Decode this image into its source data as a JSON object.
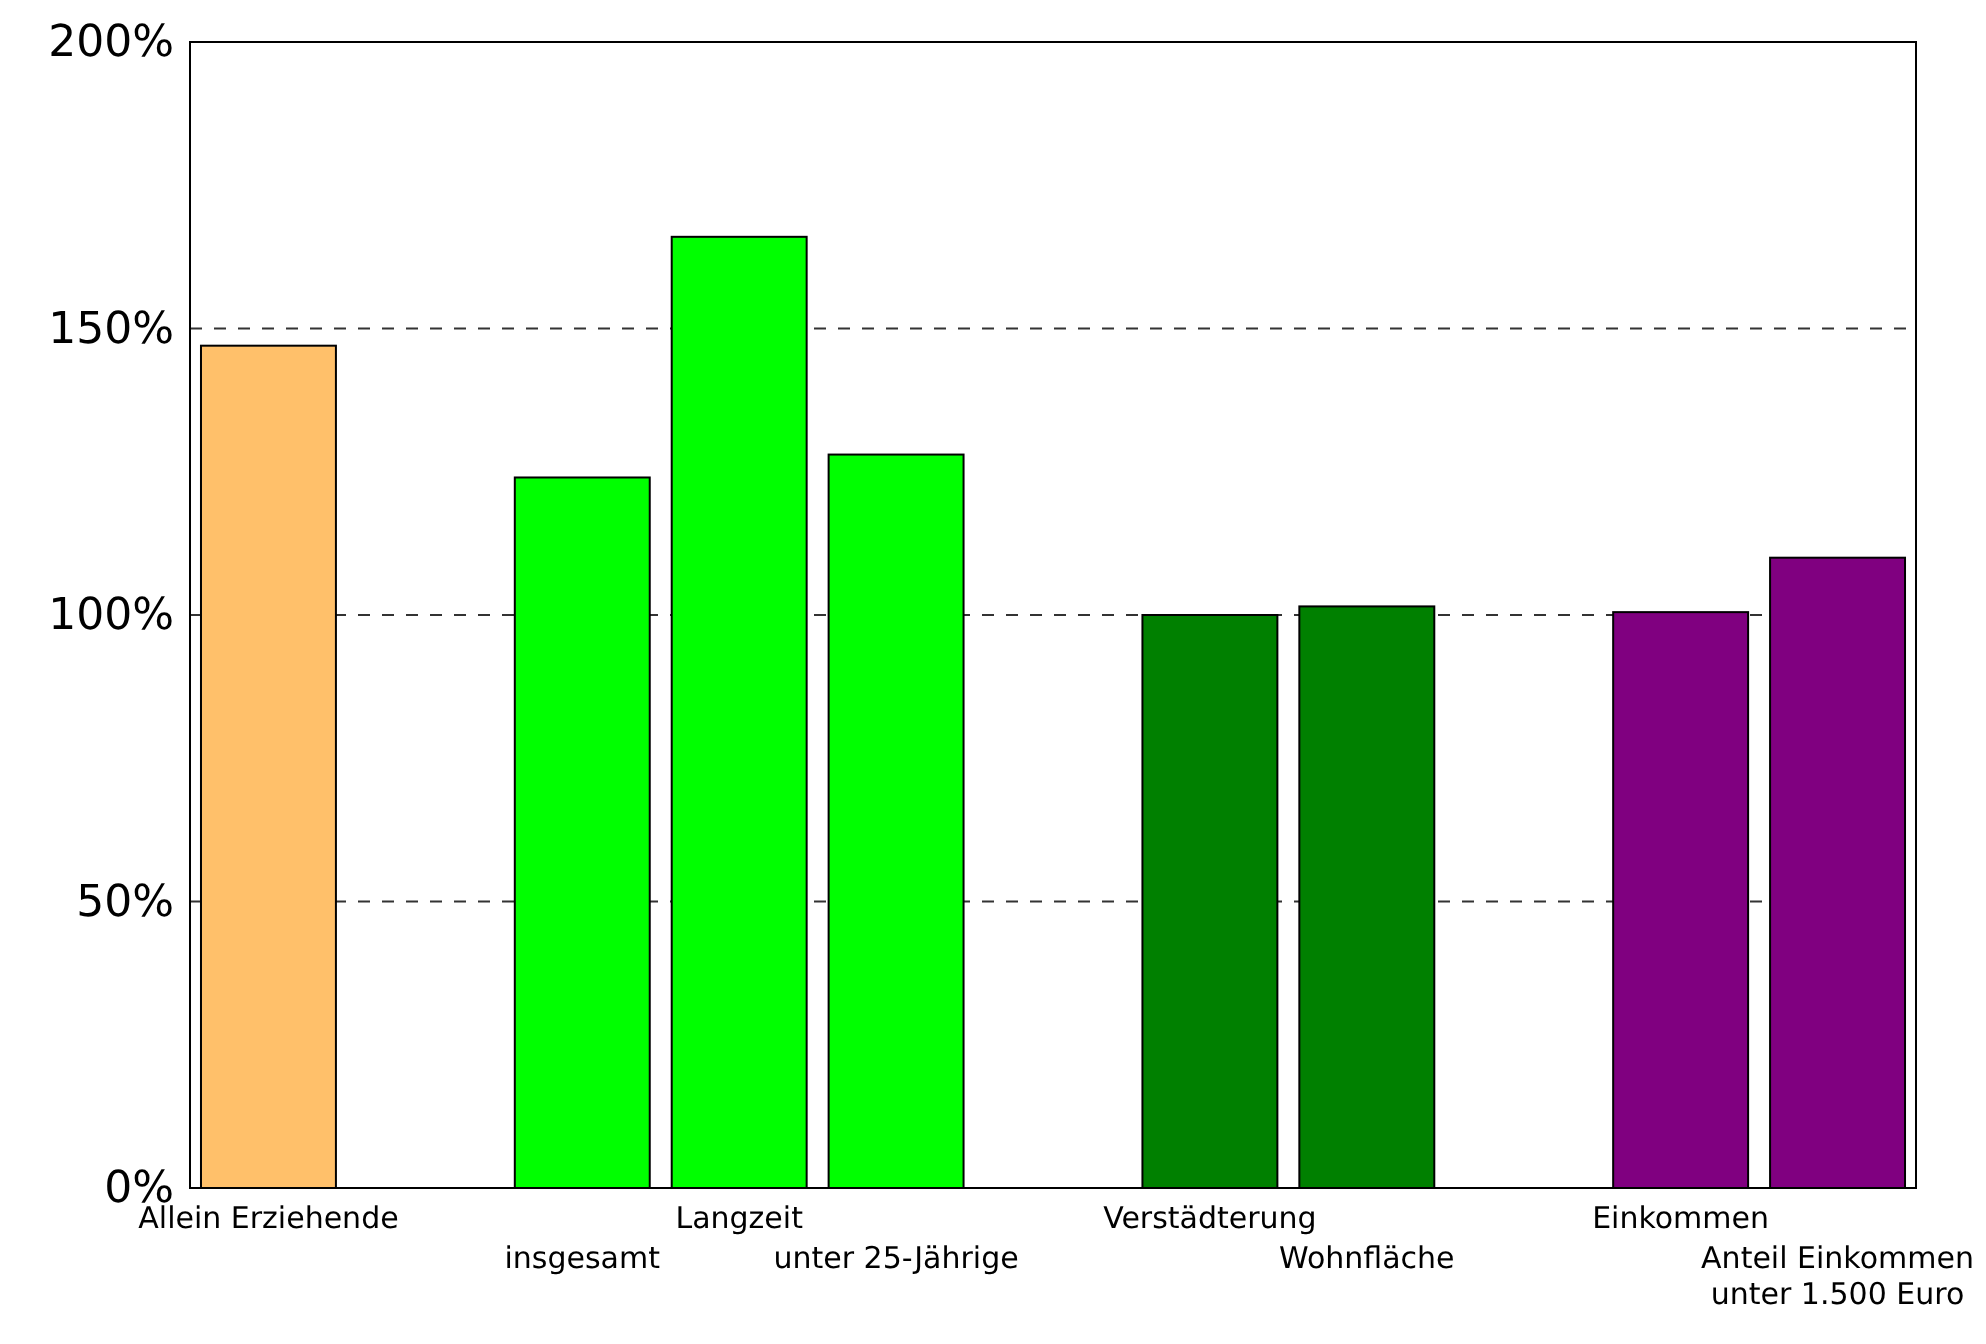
{
  "chart_data": {
    "type": "bar",
    "categories": [
      "Allein Erziehende",
      null,
      "insgesamt",
      "Langzeit",
      "unter 25-Jährige",
      null,
      "Verstädterung",
      "Wohnfläche",
      null,
      "Einkommen",
      "Anteil Einkommen unter 1.500 Euro"
    ],
    "values": [
      147,
      null,
      124,
      166,
      128,
      null,
      100,
      101.5,
      null,
      100.5,
      110
    ],
    "colors": [
      "#ffc06a",
      null,
      "#00ff00",
      "#00ff00",
      "#00ff00",
      null,
      "#008000",
      "#008000",
      null,
      "#800080",
      "#800080"
    ],
    "ylim": [
      0,
      200
    ],
    "yticks": [
      {
        "value": 0,
        "label": "0%"
      },
      {
        "value": 50,
        "label": "50%"
      },
      {
        "value": 100,
        "label": "100%"
      },
      {
        "value": 150,
        "label": "150%"
      },
      {
        "value": 200,
        "label": "200%"
      }
    ],
    "grid": "y"
  }
}
